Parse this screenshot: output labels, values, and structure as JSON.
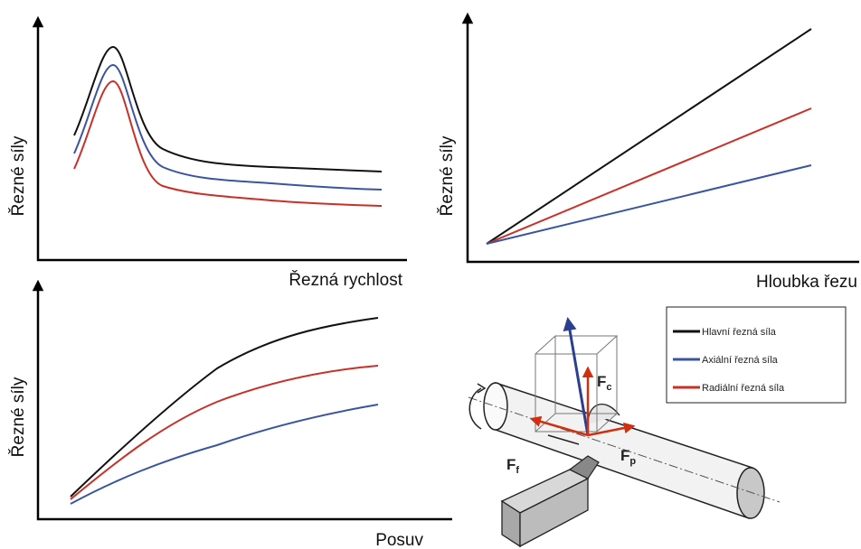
{
  "charts": [
    {
      "y_label": "Řezné síly",
      "x_label": "Řezná rychlost"
    },
    {
      "y_label": "Řezné síly",
      "x_label": "Hloubka řezu"
    },
    {
      "y_label": "Řezné síly",
      "x_label": "Posuv"
    }
  ],
  "legend": [
    "Hlavní řezná síla",
    "Axiální řezná síla",
    "Radiální řezná síla"
  ],
  "forces": [
    {
      "symbol": "F",
      "subscript": "c"
    },
    {
      "symbol": "F",
      "subscript": "p"
    },
    {
      "symbol": "F",
      "subscript": "f"
    }
  ]
}
